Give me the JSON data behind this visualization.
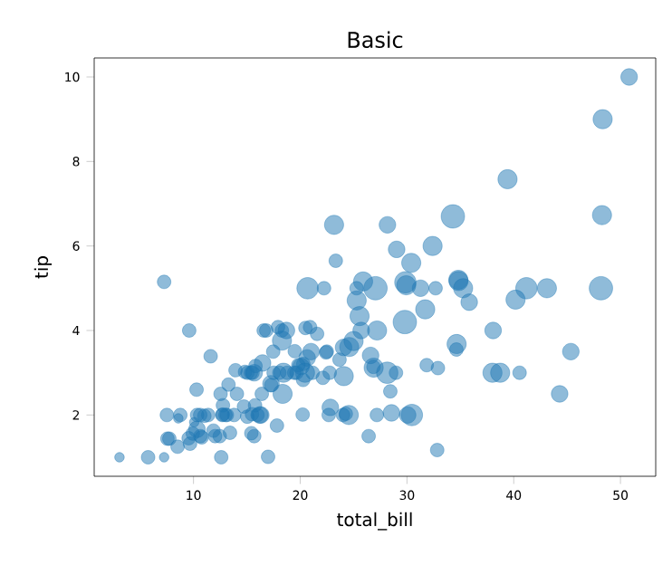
{
  "chart_data": {
    "type": "bubble",
    "title": "Basic",
    "xlabel": "total_bill",
    "ylabel": "tip",
    "color": "#1f77b4",
    "marker": "circle",
    "xlim": [
      0.7,
      53.3
    ],
    "ylim": [
      0.55,
      10.45
    ],
    "xticks": [
      10,
      20,
      30,
      40,
      50
    ],
    "yticks": [
      2,
      4,
      6,
      8,
      10
    ],
    "x": [
      50.81,
      48.33,
      7.25,
      3.07,
      5.75,
      7.25,
      32.83,
      48.27,
      48.17,
      44.3,
      45.35,
      40.55,
      43.11,
      41.19,
      39.42,
      34.81,
      34.3,
      38.07,
      35.83,
      29.8,
      28.97,
      30.46,
      31.27,
      32.4,
      32.68,
      29.85,
      24.59,
      25.29,
      27.2,
      23.68,
      24.08,
      26.88,
      22.82,
      20.65,
      18.43,
      17.29,
      14.83,
      10.07,
      10.33,
      16.99,
      12.46,
      15.69,
      8.77,
      13.0,
      10.29,
      12.54,
      7.51,
      9.55,
      11.02,
      13.42,
      15.48,
      16.31,
      18.04,
      20.29,
      21.01,
      23.33,
      24.06,
      25.56,
      19.49,
      20.69,
      26.41,
      27.05,
      28.15,
      28.44,
      28.55,
      30.06,
      30.4,
      31.71,
      34.65,
      34.83,
      38.01,
      38.73,
      40.17,
      23.17,
      25.89,
      28.17,
      24.27,
      22.76,
      32.9,
      15.38,
      17.82,
      11.61,
      16.58,
      14.73,
      18.28,
      21.58,
      20.08,
      16.0,
      13.81,
      11.38,
      9.68,
      15.04,
      22.67,
      13.94,
      12.74,
      14.07,
      18.35,
      22.23,
      19.82,
      20.23,
      17.92,
      15.77,
      22.49,
      18.71,
      20.45,
      13.28,
      19.65,
      9.94,
      10.34,
      8.58,
      8.51,
      10.65,
      12.03,
      11.87,
      13.13,
      15.06,
      25.0,
      26.59,
      17.26,
      21.16,
      24.55,
      25.71,
      29.93,
      12.76,
      34.63,
      35.26,
      16.21,
      17.51,
      20.49,
      7.74,
      7.56,
      9.6,
      12.69,
      16.4,
      31.85,
      16.47,
      26.86,
      25.28,
      22.42,
      15.42,
      18.29,
      19.44,
      20.92,
      17.47,
      10.63,
      15.81,
      16.82,
      29.03,
      27.18,
      18.78,
      20.27,
      22.12,
      24.01,
      15.69,
      10.77,
      15.53,
      12.6
    ],
    "values": [
      10,
      9,
      5.15,
      1,
      1,
      1,
      1.17,
      6.73,
      5,
      2.5,
      3.5,
      3,
      5,
      5,
      7.58,
      5.2,
      6.7,
      4,
      4.67,
      4.2,
      3,
      2,
      5,
      6,
      5,
      5.14,
      3.61,
      4.71,
      4,
      3.31,
      2.92,
      3.12,
      2.18,
      3.35,
      3,
      2.71,
      3.02,
      1.83,
      1.66,
      1.01,
      1.5,
      1.5,
      2,
      2,
      2.6,
      2.5,
      2,
      1.45,
      1.98,
      1.58,
      2.02,
      2,
      3,
      3.21,
      3.5,
      5.65,
      3.6,
      4.34,
      3.51,
      5,
      1.5,
      5,
      3,
      2.56,
      2.05,
      2,
      5.6,
      4.5,
      3.68,
      5.17,
      3,
      3,
      4.73,
      6.5,
      5.16,
      6.5,
      2.03,
      3,
      3.11,
      3,
      1.75,
      3.39,
      4,
      2.2,
      4,
      3.92,
      3.15,
      2,
      2,
      2,
      1.32,
      1.96,
      2,
      3.06,
      2.01,
      2.5,
      2.5,
      5,
      3.18,
      2.01,
      4.08,
      2.23,
      3.5,
      4,
      3,
      2.72,
      3,
      1.56,
      2,
      1.92,
      1.25,
      1.5,
      1.5,
      1.63,
      2,
      3,
      3.75,
      3.41,
      2.74,
      3,
      2,
      4,
      5.07,
      2.23,
      3.55,
      5,
      2,
      3,
      4.06,
      1.44,
      1.44,
      4,
      2,
      2.5,
      3.18,
      3.23,
      3.14,
      5,
      3.48,
      1.57,
      3.76,
      3,
      4.08,
      3.5,
      2,
      3.16,
      4,
      5.92,
      2,
      3,
      2.83,
      2.88,
      2,
      3,
      1.47,
      3,
      1
    ],
    "sizes": [
      0.5,
      0.667,
      0.333,
      0.167,
      0.333,
      0.167,
      0.333,
      0.667,
      1,
      0.5,
      0.5,
      0.333,
      0.667,
      0.833,
      0.667,
      0.667,
      1,
      0.5,
      0.5,
      1,
      0.333,
      0.833,
      0.5,
      0.667,
      0.333,
      0.833,
      0.667,
      0.667,
      0.667,
      0.333,
      0.667,
      0.667,
      0.5,
      0.5,
      0.667,
      0.333,
      0.333,
      0.167,
      0.5,
      0.333,
      0.333,
      0.333,
      0.333,
      0.333,
      0.333,
      0.333,
      0.333,
      0.333,
      0.333,
      0.333,
      0.333,
      0.5,
      0.333,
      0.333,
      0.5,
      0.333,
      0.5,
      0.667,
      0.333,
      0.833,
      0.333,
      1,
      0.833,
      0.333,
      0.5,
      0.5,
      0.667,
      0.667,
      0.667,
      0.667,
      0.667,
      0.667,
      0.667,
      0.667,
      0.667,
      0.5,
      0.333,
      0.333,
      0.333,
      0.333,
      0.333,
      0.333,
      0.333,
      0.333,
      0.333,
      0.333,
      0.5,
      0.333,
      0.333,
      0.333,
      0.333,
      0.333,
      0.333,
      0.333,
      0.333,
      0.333,
      0.667,
      0.333,
      0.333,
      0.333,
      0.333,
      0.333,
      0.333,
      0.5,
      0.667,
      0.333,
      0.333,
      0.333,
      0.333,
      0.167,
      0.333,
      0.333,
      0.333,
      0.333,
      0.333,
      0.333,
      0.667,
      0.5,
      0.5,
      0.333,
      0.667,
      0.5,
      0.667,
      0.333,
      0.333,
      0.667,
      0.5,
      0.333,
      0.333,
      0.333,
      0.333,
      0.333,
      0.333,
      0.333,
      0.333,
      0.5,
      0.333,
      0.333,
      0.333,
      0.333,
      0.667,
      0.333,
      0.333,
      0.333,
      0.333,
      0.333,
      0.333,
      0.5,
      0.333,
      0.333,
      0.333,
      0.333,
      0.333,
      0.5,
      0.333,
      0.333,
      0.333
    ]
  }
}
